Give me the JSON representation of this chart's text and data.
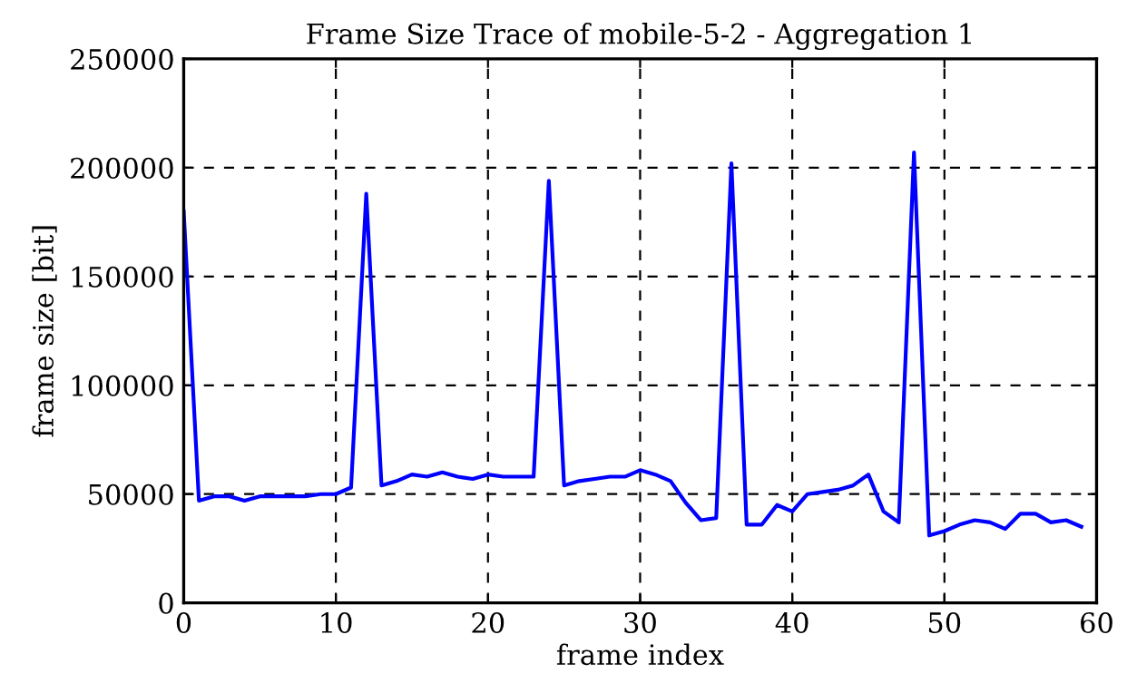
{
  "chart_data": {
    "type": "line",
    "title": "Frame Size Trace of mobile-5-2 - Aggregation 1",
    "xlabel": "frame index",
    "ylabel": "frame size [bit]",
    "x": [
      0,
      1,
      2,
      3,
      4,
      5,
      6,
      7,
      8,
      9,
      10,
      11,
      12,
      13,
      14,
      15,
      16,
      17,
      18,
      19,
      20,
      21,
      22,
      23,
      24,
      25,
      26,
      27,
      28,
      29,
      30,
      31,
      32,
      33,
      34,
      35,
      36,
      37,
      38,
      39,
      40,
      41,
      42,
      43,
      44,
      45,
      46,
      47,
      48,
      49,
      50,
      51,
      52,
      53,
      54,
      55,
      56,
      57,
      58,
      59
    ],
    "series": [
      {
        "color": "#0000ff",
        "values": [
          180000,
          47000,
          49000,
          49000,
          47000,
          49000,
          49000,
          49000,
          49000,
          50000,
          50000,
          53000,
          188000,
          54000,
          56000,
          59000,
          58000,
          60000,
          58000,
          57000,
          59000,
          58000,
          58000,
          58000,
          194000,
          54000,
          56000,
          57000,
          58000,
          58000,
          61000,
          59000,
          56000,
          46000,
          38000,
          39000,
          202000,
          36000,
          36000,
          45000,
          42000,
          50000,
          51000,
          52000,
          54000,
          59000,
          42000,
          37000,
          207000,
          31000,
          33000,
          36000,
          38000,
          37000,
          34000,
          41000,
          41000,
          37000,
          38000,
          35000
        ]
      }
    ],
    "xlim": [
      0,
      60
    ],
    "ylim": [
      0,
      250000
    ],
    "xticks": [
      0,
      10,
      20,
      30,
      40,
      50,
      60
    ],
    "yticks": [
      0,
      50000,
      100000,
      150000,
      200000,
      250000
    ],
    "grid": true,
    "marker": "none",
    "line_style": "solid"
  }
}
